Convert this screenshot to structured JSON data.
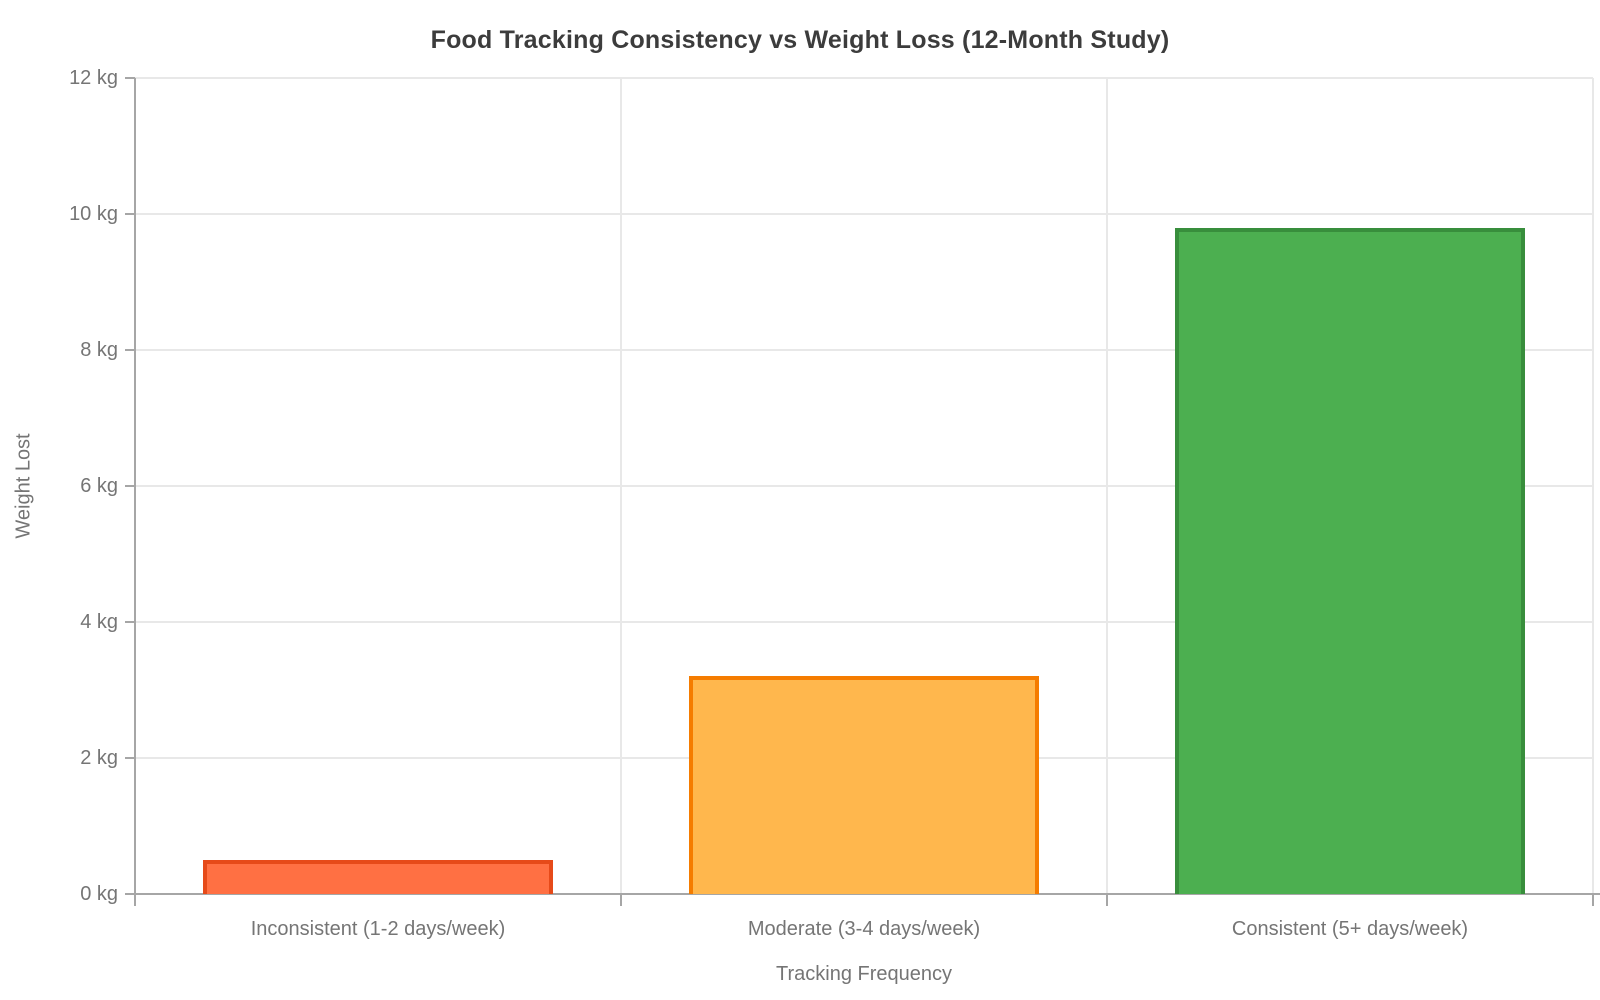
{
  "chart_data": {
    "type": "bar",
    "title": "Food Tracking Consistency vs Weight Loss (12-Month Study)",
    "xlabel": "Tracking Frequency",
    "ylabel": "Weight Lost",
    "categories": [
      "Inconsistent (1-2 days/week)",
      "Moderate (3-4 days/week)",
      "Consistent (5+ days/week)"
    ],
    "values": [
      0.5,
      3.2,
      9.8
    ],
    "unit": "kg",
    "ylim": [
      0,
      12
    ],
    "ytick_step": 2,
    "ytick_labels": [
      "0 kg",
      "2 kg",
      "4 kg",
      "6 kg",
      "8 kg",
      "10 kg",
      "12 kg"
    ],
    "grid": true,
    "legend": "none",
    "bar_colors": [
      {
        "fill": "#FF7043",
        "stroke": "#E64A19"
      },
      {
        "fill": "#FFB74D",
        "stroke": "#F57C00"
      },
      {
        "fill": "#4CAF50",
        "stroke": "#388E3C"
      }
    ],
    "style_colors": {
      "title_text": "#3C3C3C",
      "label_text": "#757575",
      "axis_line": "#A6A6A6",
      "gridline": "#E8E8E8",
      "background": "#FFFFFF"
    }
  }
}
